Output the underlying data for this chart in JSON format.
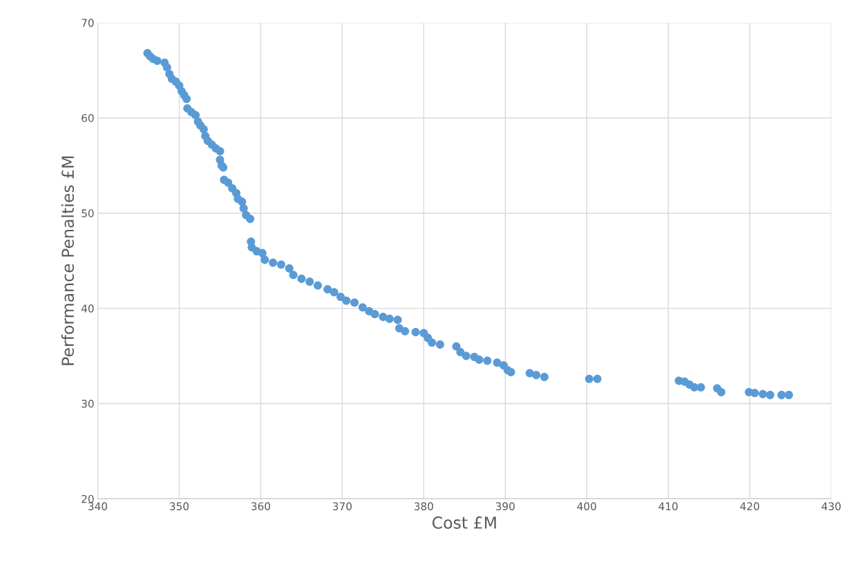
{
  "chart_data": {
    "type": "scatter",
    "xlabel": "Cost £M",
    "ylabel": "Performance Penalties £M",
    "xlim": [
      340,
      430
    ],
    "xticks": [
      340,
      350,
      360,
      370,
      380,
      390,
      400,
      410,
      420,
      430
    ],
    "ylim": [
      20,
      70
    ],
    "yticks": [
      20,
      30,
      40,
      50,
      60,
      70
    ],
    "grid": true,
    "marker": "circle",
    "series": [
      {
        "color": "#5b9bd5",
        "x": [
          346.1,
          346.4,
          346.8,
          347.3,
          348.2,
          348.5,
          348.8,
          349.1,
          349.6,
          350.0,
          350.3,
          350.6,
          350.9,
          351.0,
          351.5,
          352.0,
          352.3,
          352.6,
          353.0,
          353.2,
          353.5,
          354.0,
          354.5,
          355.0,
          355.0,
          355.2,
          355.4,
          355.5,
          356.0,
          356.5,
          357.0,
          357.2,
          357.7,
          357.9,
          358.2,
          358.7,
          358.8,
          358.9,
          359.5,
          360.2,
          360.5,
          361.5,
          362.5,
          363.5,
          364.0,
          365.0,
          366.0,
          367.0,
          368.2,
          369.0,
          369.8,
          370.5,
          371.5,
          372.5,
          373.3,
          374.0,
          375.0,
          375.8,
          376.8,
          377.0,
          377.7,
          379.0,
          380.0,
          380.5,
          381.0,
          382.0,
          384.0,
          384.5,
          385.2,
          386.2,
          386.8,
          387.8,
          389.0,
          389.8,
          390.3,
          390.7,
          393.0,
          393.8,
          394.8,
          400.3,
          401.3,
          411.3,
          412.0,
          412.6,
          413.2,
          414.0,
          416.0,
          416.5,
          419.9,
          420.6,
          421.6,
          422.5,
          423.9,
          424.8
        ],
        "values": [
          66.8,
          66.5,
          66.2,
          66.0,
          65.8,
          65.3,
          64.6,
          64.1,
          63.8,
          63.4,
          62.8,
          62.4,
          62.0,
          61.0,
          60.6,
          60.3,
          59.6,
          59.2,
          58.8,
          58.1,
          57.6,
          57.2,
          56.8,
          56.5,
          55.6,
          55.0,
          54.8,
          53.5,
          53.2,
          52.6,
          52.1,
          51.5,
          51.2,
          50.5,
          49.8,
          49.4,
          47.0,
          46.4,
          46.0,
          45.8,
          45.1,
          44.8,
          44.6,
          44.2,
          43.5,
          43.1,
          42.8,
          42.4,
          42.0,
          41.7,
          41.2,
          40.8,
          40.6,
          40.1,
          39.7,
          39.4,
          39.1,
          38.9,
          38.8,
          37.9,
          37.6,
          37.5,
          37.4,
          36.9,
          36.4,
          36.2,
          36.0,
          35.4,
          35.0,
          34.9,
          34.6,
          34.5,
          34.3,
          34.0,
          33.5,
          33.3,
          33.2,
          33.0,
          32.8,
          32.6,
          32.6,
          32.4,
          32.3,
          32.0,
          31.7,
          31.7,
          31.6,
          31.2,
          31.2,
          31.1,
          31.0,
          30.9,
          30.9,
          30.9
        ]
      }
    ]
  }
}
